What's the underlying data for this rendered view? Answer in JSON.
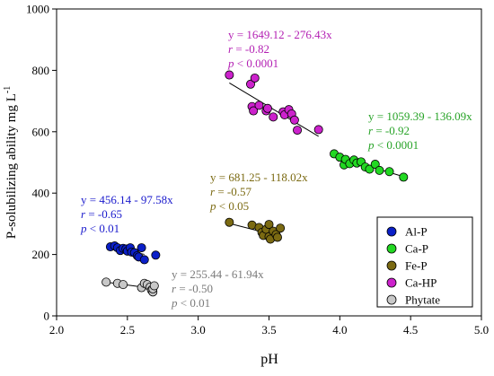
{
  "chart_data": {
    "type": "scatter",
    "xlabel": "pH",
    "ylabel": "P-solubilizing ability mg L",
    "ylabel_sup": "-1",
    "xlim": [
      2.0,
      5.0
    ],
    "ylim": [
      0,
      1000
    ],
    "xticks": [
      2.0,
      2.5,
      3.0,
      3.5,
      4.0,
      4.5,
      5.0
    ],
    "xtick_labels": [
      "2.0",
      "2.5",
      "3.0",
      "3.5",
      "4.0",
      "4.5",
      "5.0"
    ],
    "yticks": [
      0,
      200,
      400,
      600,
      800,
      1000
    ],
    "ytick_labels": [
      "0",
      "200",
      "400",
      "600",
      "800",
      "1000"
    ],
    "grid": false,
    "legend_position": "bottom-right",
    "series": [
      {
        "name": "Al-P",
        "color": "#0a1fc8",
        "points": [
          [
            2.38,
            225
          ],
          [
            2.41,
            228
          ],
          [
            2.43,
            222
          ],
          [
            2.45,
            213
          ],
          [
            2.47,
            220
          ],
          [
            2.49,
            218
          ],
          [
            2.5,
            211
          ],
          [
            2.52,
            222
          ],
          [
            2.53,
            208
          ],
          [
            2.55,
            206
          ],
          [
            2.57,
            196
          ],
          [
            2.58,
            192
          ],
          [
            2.6,
            222
          ],
          [
            2.62,
            183
          ],
          [
            2.7,
            198
          ]
        ],
        "fit": {
          "intercept": 456.14,
          "slope": -97.58,
          "x_range": [
            2.38,
            2.62
          ]
        },
        "annotation": [
          "y = 456.14 - 97.58x",
          "r = -0.65",
          "p < 0.01"
        ]
      },
      {
        "name": "Ca-P",
        "color": "#22d822",
        "points": [
          [
            3.96,
            528
          ],
          [
            4.0,
            517
          ],
          [
            4.03,
            492
          ],
          [
            4.04,
            510
          ],
          [
            4.07,
            496
          ],
          [
            4.1,
            508
          ],
          [
            4.12,
            498
          ],
          [
            4.15,
            502
          ],
          [
            4.18,
            485
          ],
          [
            4.21,
            478
          ],
          [
            4.25,
            494
          ],
          [
            4.28,
            474
          ],
          [
            4.35,
            470
          ],
          [
            4.45,
            452
          ]
        ],
        "fit": {
          "intercept": 1059.39,
          "slope": -136.09,
          "x_range": [
            3.96,
            4.47
          ]
        },
        "annotation": [
          "y = 1059.39 - 136.09x",
          "r = -0.92",
          "p < 0.0001"
        ]
      },
      {
        "name": "Fe-P",
        "color": "#7b6a12",
        "points": [
          [
            3.22,
            305
          ],
          [
            3.38,
            296
          ],
          [
            3.43,
            288
          ],
          [
            3.45,
            272
          ],
          [
            3.46,
            262
          ],
          [
            3.48,
            282
          ],
          [
            3.5,
            298
          ],
          [
            3.5,
            258
          ],
          [
            3.51,
            250
          ],
          [
            3.53,
            276
          ],
          [
            3.55,
            265
          ],
          [
            3.56,
            256
          ],
          [
            3.58,
            286
          ]
        ],
        "fit": {
          "intercept": 681.25,
          "slope": -118.02,
          "x_range": [
            3.22,
            3.58
          ]
        },
        "annotation": [
          "y = 681.25 - 118.02x",
          "r = -0.57",
          "p < 0.05"
        ]
      },
      {
        "name": "Ca-HP",
        "color": "#cc22cc",
        "points": [
          [
            3.22,
            785
          ],
          [
            3.37,
            755
          ],
          [
            3.38,
            682
          ],
          [
            3.39,
            668
          ],
          [
            3.4,
            775
          ],
          [
            3.43,
            686
          ],
          [
            3.48,
            668
          ],
          [
            3.49,
            676
          ],
          [
            3.53,
            648
          ],
          [
            3.6,
            665
          ],
          [
            3.61,
            655
          ],
          [
            3.64,
            672
          ],
          [
            3.66,
            658
          ],
          [
            3.68,
            638
          ],
          [
            3.7,
            605
          ],
          [
            3.85,
            607
          ]
        ],
        "fit": {
          "intercept": 1649.12,
          "slope": -276.43,
          "x_range": [
            3.22,
            3.85
          ]
        },
        "annotation": [
          "y = 1649.12 - 276.43x",
          "r = -0.82",
          "p < 0.0001"
        ]
      },
      {
        "name": "Phytate",
        "color": "#c8c8c8",
        "points": [
          [
            2.35,
            110
          ],
          [
            2.43,
            106
          ],
          [
            2.47,
            102
          ],
          [
            2.6,
            92
          ],
          [
            2.62,
            106
          ],
          [
            2.64,
            102
          ],
          [
            2.66,
            94
          ],
          [
            2.67,
            84
          ],
          [
            2.68,
            78
          ],
          [
            2.68,
            88
          ],
          [
            2.69,
            98
          ]
        ],
        "fit": {
          "intercept": 255.44,
          "slope": -61.94,
          "x_range": [
            2.35,
            2.69
          ]
        },
        "annotation": [
          "y = 255.44 - 61.94x",
          "r = -0.50",
          "p < 0.01"
        ]
      }
    ]
  }
}
